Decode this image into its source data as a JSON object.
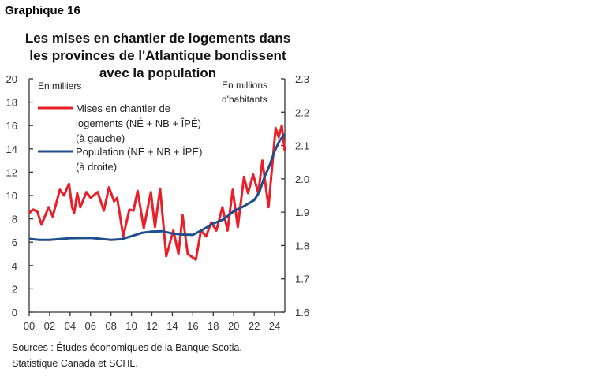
{
  "header": {
    "label": "Graphique 16"
  },
  "footer": {
    "sources": [
      "Sources : Études économiques de la Banque Scotia,",
      "Statistique Canada et SCHL."
    ]
  },
  "chart_data": {
    "type": "line",
    "title": "Les mises en chantier de logements dans les provinces de l'Atlantique bondissent avec la population",
    "title_lines": [
      "Les mises en chantier de logements dans",
      "les provinces de l'Atlantique bondissent",
      "avec la population"
    ],
    "y_left": {
      "unit": "En milliers",
      "range": [
        0,
        20
      ],
      "ticks": [
        "0",
        "2",
        "4",
        "6",
        "8",
        "10",
        "12",
        "14",
        "16",
        "18",
        "20"
      ]
    },
    "y_right": {
      "unit": [
        "En millions",
        "d'habitants"
      ],
      "range": [
        1.6,
        2.3
      ],
      "ticks": [
        "1.6",
        "1.7",
        "1.8",
        "1.9",
        "2.0",
        "2.1",
        "2.2",
        "2.3"
      ]
    },
    "x": {
      "range": [
        2000,
        2025
      ],
      "ticks": [
        "00",
        "02",
        "04",
        "06",
        "08",
        "10",
        "12",
        "14",
        "16",
        "18",
        "20",
        "22",
        "24"
      ]
    },
    "legend_placement": "top-left",
    "grid": false,
    "colors": {
      "starts": "#e8202a",
      "population": "#1f4e8c"
    },
    "series": [
      {
        "name": "Mises en chantier de logements (NÉ + NB + ÎPÉ) (à gauche)",
        "legend_lines": [
          "Mises en chantier de",
          "logements (NÉ + NB + ÎPÉ)",
          "(à gauche)"
        ],
        "axis": "left",
        "points": [
          [
            2000,
            8.5
          ],
          [
            2000.4,
            8.8
          ],
          [
            2000.8,
            8.6
          ],
          [
            2001.2,
            7.5
          ],
          [
            2001.9,
            9.0
          ],
          [
            2002.3,
            8.2
          ],
          [
            2003,
            10.5
          ],
          [
            2003.4,
            10.0
          ],
          [
            2003.9,
            11.0
          ],
          [
            2004.2,
            9.0
          ],
          [
            2004.4,
            8.5
          ],
          [
            2004.7,
            10.2
          ],
          [
            2005,
            9.0
          ],
          [
            2005.6,
            10.3
          ],
          [
            2006,
            9.8
          ],
          [
            2006.7,
            10.3
          ],
          [
            2007.3,
            8.7
          ],
          [
            2007.8,
            10.7
          ],
          [
            2008.3,
            9.5
          ],
          [
            2008.6,
            9.8
          ],
          [
            2009.2,
            6.5
          ],
          [
            2009.8,
            8.8
          ],
          [
            2010.2,
            8.7
          ],
          [
            2010.6,
            10.4
          ],
          [
            2011.2,
            7.2
          ],
          [
            2011.9,
            10.3
          ],
          [
            2012.3,
            7.3
          ],
          [
            2012.8,
            10.6
          ],
          [
            2013.4,
            4.8
          ],
          [
            2014.1,
            7.0
          ],
          [
            2014.6,
            5.0
          ],
          [
            2015,
            8.3
          ],
          [
            2015.5,
            5.0
          ],
          [
            2016.3,
            4.5
          ],
          [
            2016.8,
            7.0
          ],
          [
            2017.3,
            6.5
          ],
          [
            2017.8,
            7.7
          ],
          [
            2018.3,
            7.0
          ],
          [
            2018.9,
            9.0
          ],
          [
            2019.4,
            7.0
          ],
          [
            2019.9,
            10.5
          ],
          [
            2020.4,
            7.3
          ],
          [
            2021,
            11.6
          ],
          [
            2021.4,
            10.2
          ],
          [
            2021.9,
            11.8
          ],
          [
            2022.4,
            10.2
          ],
          [
            2022.8,
            13.0
          ],
          [
            2023.4,
            9.0
          ],
          [
            2024.1,
            15.8
          ],
          [
            2024.4,
            15.0
          ],
          [
            2024.7,
            16.0
          ],
          [
            2025,
            13.8
          ]
        ]
      },
      {
        "name": "Population (NÉ + NB + ÎPÉ) (à droite)",
        "legend_lines": [
          "Population (NÉ + NB + ÎPÉ)",
          "(à droite)"
        ],
        "axis": "right",
        "points": [
          [
            2000,
            1.82
          ],
          [
            2001,
            1.817
          ],
          [
            2002,
            1.817
          ],
          [
            2004,
            1.822
          ],
          [
            2006,
            1.823
          ],
          [
            2008,
            1.817
          ],
          [
            2009,
            1.819
          ],
          [
            2010,
            1.828
          ],
          [
            2011,
            1.838
          ],
          [
            2012,
            1.842
          ],
          [
            2013,
            1.843
          ],
          [
            2014,
            1.836
          ],
          [
            2015,
            1.833
          ],
          [
            2016,
            1.832
          ],
          [
            2017,
            1.848
          ],
          [
            2018,
            1.866
          ],
          [
            2019,
            1.878
          ],
          [
            2020,
            1.903
          ],
          [
            2021,
            1.918
          ],
          [
            2022,
            1.936
          ],
          [
            2022.5,
            1.96
          ],
          [
            2023,
            2.005
          ],
          [
            2023.5,
            2.04
          ],
          [
            2024,
            2.083
          ],
          [
            2024.5,
            2.115
          ],
          [
            2025,
            2.134
          ]
        ]
      }
    ]
  }
}
